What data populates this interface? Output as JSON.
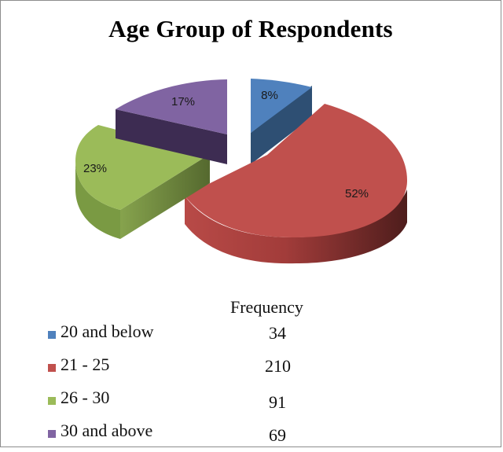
{
  "chart_data": {
    "type": "pie",
    "style": "3d-exploded",
    "title": "Age Group of Respondents",
    "categories": [
      "20 and below",
      "21 - 25",
      "26 - 30",
      "30 and above"
    ],
    "values": [
      34,
      210,
      91,
      69
    ],
    "percent_labels": [
      "8%",
      "52%",
      "23%",
      "17%"
    ],
    "colors": [
      "#4f81bd",
      "#c0504d",
      "#9bbb59",
      "#8064a2"
    ],
    "table_header": "Frequency",
    "legend_position": "bottom-left"
  }
}
